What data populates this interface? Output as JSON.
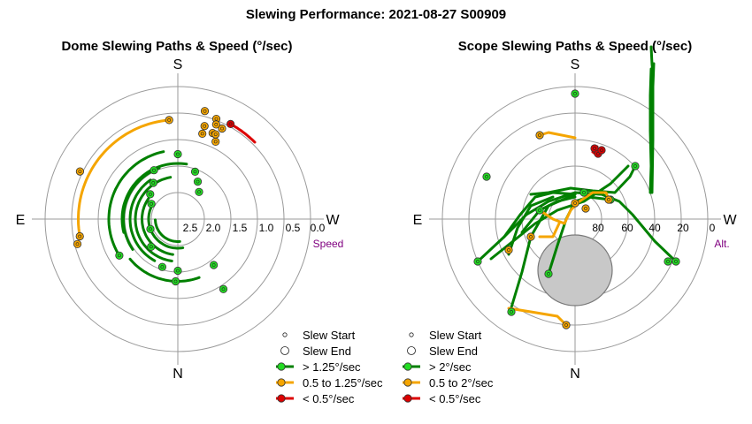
{
  "title": "Slewing Performance: 2021-08-27 S00909",
  "colors": {
    "fast": "#008000",
    "fast_marker": "#22dd22",
    "medium": "#f5a500",
    "medium_marker": "#f5a500",
    "slow": "#dd0000",
    "slow_marker": "#dd0000",
    "grid": "#9a9a9a",
    "axis_label": "#800080",
    "obscured": "#c8c8c8"
  },
  "chart_data": [
    {
      "type": "scatter",
      "subtype": "polar",
      "title": "Dome Slewing Paths & Speed (°/sec)",
      "directions": {
        "top": "S",
        "bottom": "N",
        "left": "E",
        "right": "W"
      },
      "radial_label": "Speed",
      "radial_ticks": [
        "2.5",
        "2.0",
        "1.5",
        "1.0",
        "0.5",
        "0.0"
      ],
      "rlim": [
        0.0,
        2.5
      ],
      "legend": {
        "placement": "bottom-right",
        "entries": [
          "Slew Start",
          "Slew End",
          "> 1.25°/sec",
          "0.5 to 1.25°/sec",
          "< 0.5°/sec"
        ]
      },
      "arcs": [
        {
          "r": 0.42,
          "a1": -9,
          "a2": 104,
          "speed": "fast"
        },
        {
          "r": 0.32,
          "a1": 10,
          "a2": 172,
          "speed": "fast"
        },
        {
          "r": 0.41,
          "a1": 20,
          "a2": 124,
          "speed": "fast"
        },
        {
          "r": 0.36,
          "a1": 35,
          "a2": 151,
          "speed": "fast"
        },
        {
          "r": 0.27,
          "a1": 55,
          "a2": 172,
          "speed": "fast"
        },
        {
          "r": 0.22,
          "a1": 65,
          "a2": 190,
          "speed": "fast"
        },
        {
          "r": 0.17,
          "a1": 92,
          "a2": 185,
          "speed": "fast"
        },
        {
          "r": 0.47,
          "a1": 130,
          "a2": 200,
          "speed": "fast"
        },
        {
          "r": 0.52,
          "a1": 12,
          "a2": 122,
          "speed": "fast"
        },
        {
          "r": 0.75,
          "a1": 5,
          "a2": 100,
          "speed": "medium"
        },
        {
          "r": 0.82,
          "a1": -29,
          "a2": -45,
          "speed": "slow"
        }
      ],
      "markers": [
        {
          "r": 0.49,
          "a": 0,
          "speed": "fast"
        },
        {
          "r": 0.41,
          "a": 26,
          "speed": "fast"
        },
        {
          "r": 0.33,
          "a": 34,
          "speed": "fast"
        },
        {
          "r": 0.28,
          "a": 48,
          "speed": "fast"
        },
        {
          "r": 0.23,
          "a": 60,
          "speed": "fast"
        },
        {
          "r": 0.38,
          "a": -20,
          "speed": "fast"
        },
        {
          "r": 0.32,
          "a": -28,
          "speed": "fast"
        },
        {
          "r": 0.26,
          "a": -38,
          "speed": "fast"
        },
        {
          "r": 0.22,
          "a": 110,
          "speed": "fast"
        },
        {
          "r": 0.29,
          "a": 136,
          "speed": "fast"
        },
        {
          "r": 0.38,
          "a": 162,
          "speed": "fast"
        },
        {
          "r": 0.47,
          "a": 178,
          "speed": "fast"
        },
        {
          "r": 0.44,
          "a": -142,
          "speed": "fast"
        },
        {
          "r": 0.63,
          "a": -147,
          "speed": "fast"
        },
        {
          "r": 0.52,
          "a": 122,
          "speed": "fast"
        },
        {
          "r": 0.39,
          "a": 180,
          "speed": "fast"
        },
        {
          "r": 0.75,
          "a": 5,
          "speed": "medium"
        },
        {
          "r": 0.73,
          "a": -16,
          "speed": "medium"
        },
        {
          "r": 0.84,
          "a": -14,
          "speed": "medium"
        },
        {
          "r": 0.81,
          "a": -21,
          "speed": "medium"
        },
        {
          "r": 0.77,
          "a": -22,
          "speed": "medium"
        },
        {
          "r": 0.7,
          "a": -22,
          "speed": "medium"
        },
        {
          "r": 0.67,
          "a": -16,
          "speed": "medium"
        },
        {
          "r": 0.65,
          "a": -26,
          "speed": "medium"
        },
        {
          "r": 0.7,
          "a": -24,
          "speed": "medium"
        },
        {
          "r": 0.76,
          "a": -26,
          "speed": "medium"
        },
        {
          "r": 0.75,
          "a": 100,
          "speed": "medium"
        },
        {
          "r": 0.78,
          "a": 104,
          "speed": "medium"
        },
        {
          "r": 0.82,
          "a": 64,
          "speed": "medium"
        },
        {
          "r": 0.82,
          "a": -29,
          "speed": "slow"
        }
      ]
    },
    {
      "type": "scatter",
      "subtype": "polar",
      "title": "Scope Slewing Paths & Speed (°/sec)",
      "directions": {
        "top": "S",
        "bottom": "N",
        "left": "E",
        "right": "W"
      },
      "radial_label": "Alt.",
      "radial_ticks": [
        "80",
        "60",
        "40",
        "20",
        "0"
      ],
      "rlim": [
        90,
        0
      ],
      "legend": {
        "placement": "bottom-right",
        "entries": [
          "Slew Start",
          "Slew End",
          "> 2°/sec",
          "0.5 to 2°/sec",
          "< 0.5°/sec"
        ]
      },
      "paths": [
        {
          "speed": "fast",
          "points": [
            [
              86,
              30
            ],
            [
              87,
              60
            ],
            [
              87,
              100
            ],
            [
              88,
              140
            ],
            [
              88,
              165
            ],
            [
              87,
              175
            ],
            [
              86,
              195
            ]
          ]
        },
        {
          "speed": "fast",
          "points": [
            [
              85,
              30
            ],
            [
              86,
              60
            ],
            [
              85,
              100
            ],
            [
              85,
              140
            ],
            [
              86,
              170
            ]
          ]
        },
        {
          "speed": "fast",
          "points": [
            [
              87,
              30
            ],
            [
              88,
              90
            ],
            [
              88,
              150
            ],
            [
              89,
              176
            ]
          ]
        },
        {
          "speed": "fast",
          "points": [
            [
              -50,
              28
            ],
            [
              -30,
              30
            ],
            [
              -5,
              35
            ],
            [
              20,
              32
            ],
            [
              45,
              30
            ],
            [
              62,
              48
            ],
            [
              68,
              60
            ]
          ]
        },
        {
          "speed": "fast",
          "points": [
            [
              -95,
              -45
            ],
            [
              -70,
              -25
            ],
            [
              -45,
              -5
            ],
            [
              -20,
              10
            ],
            [
              10,
              20
            ],
            [
              40,
              40
            ],
            [
              60,
              60
            ]
          ]
        },
        {
          "speed": "fast",
          "points": [
            [
              -110,
              -48
            ],
            [
              -80,
              -20
            ],
            [
              -55,
              5
            ],
            [
              -30,
              20
            ],
            [
              0,
              30
            ],
            [
              30,
              28
            ]
          ]
        },
        {
          "speed": "fast",
          "points": [
            [
              -80,
              -20
            ],
            [
              -62,
              5
            ],
            [
              -45,
              25
            ],
            [
              -25,
              30
            ],
            [
              0,
              28
            ]
          ]
        },
        {
          "speed": "fast",
          "points": [
            [
              -30,
              -62
            ],
            [
              -20,
              -30
            ],
            [
              -10,
              0
            ],
            [
              0,
              20
            ],
            [
              15,
              25
            ],
            [
              40,
              22
            ]
          ]
        },
        {
          "speed": "fast",
          "points": [
            [
              -72,
              -100
            ],
            [
              -60,
              -60
            ],
            [
              -50,
              -20
            ],
            [
              -30,
              15
            ],
            [
              0,
              28
            ]
          ]
        },
        {
          "speed": "fast",
          "points": [
            [
              114,
              -48
            ],
            [
              90,
              -25
            ],
            [
              65,
              5
            ],
            [
              50,
              20
            ],
            [
              30,
              28
            ],
            [
              5,
              30
            ]
          ]
        },
        {
          "speed": "fast",
          "points": [
            [
              -75,
              -40
            ],
            [
              -65,
              -10
            ],
            [
              -50,
              15
            ],
            [
              -25,
              25
            ]
          ]
        },
        {
          "speed": "fast",
          "points": [
            [
              -60,
              -15
            ],
            [
              -40,
              10
            ],
            [
              -20,
              20
            ],
            [
              0,
              25
            ]
          ]
        },
        {
          "speed": "medium",
          "points": [
            [
              -75,
              -101
            ],
            [
              -50,
              -105
            ],
            [
              -20,
              -110
            ],
            [
              -10,
              -120
            ]
          ]
        },
        {
          "speed": "medium",
          "points": [
            [
              -40,
              95
            ],
            [
              -30,
              98
            ],
            [
              -15,
              95
            ],
            [
              0,
              92
            ]
          ]
        },
        {
          "speed": "medium",
          "points": [
            [
              -40,
              10
            ],
            [
              -25,
              0
            ],
            [
              -12,
              -5
            ],
            [
              -5,
              10
            ],
            [
              5,
              20
            ],
            [
              20,
              30
            ],
            [
              35,
              30
            ],
            [
              38,
              22
            ]
          ]
        },
        {
          "speed": "medium",
          "points": [
            [
              -40,
              -20
            ],
            [
              -25,
              -20
            ],
            [
              -18,
              -5
            ]
          ]
        },
        {
          "speed": "slow",
          "points": [
            [
              20,
              82
            ],
            [
              25,
              78
            ],
            [
              30,
              75
            ],
            [
              25,
              72
            ],
            [
              20,
              76
            ],
            [
              25,
              82
            ]
          ]
        }
      ],
      "markers": [
        {
          "x": 0,
          "y": 142,
          "speed": "fast"
        },
        {
          "x": 105,
          "y": -48,
          "speed": "fast"
        },
        {
          "x": 114,
          "y": -48,
          "speed": "fast"
        },
        {
          "x": -110,
          "y": -48,
          "speed": "fast"
        },
        {
          "x": -100,
          "y": 48,
          "speed": "fast"
        },
        {
          "x": -72,
          "y": -105,
          "speed": "fast"
        },
        {
          "x": -30,
          "y": -62,
          "speed": "fast"
        },
        {
          "x": -40,
          "y": 10,
          "speed": "fast"
        },
        {
          "x": 10,
          "y": 30,
          "speed": "fast"
        },
        {
          "x": 40,
          "y": 22,
          "speed": "fast"
        },
        {
          "x": 68,
          "y": 60,
          "speed": "fast"
        },
        {
          "x": -40,
          "y": 95,
          "speed": "medium"
        },
        {
          "x": -75,
          "y": -35,
          "speed": "medium"
        },
        {
          "x": -10,
          "y": -120,
          "speed": "medium"
        },
        {
          "x": 0,
          "y": 18,
          "speed": "medium"
        },
        {
          "x": 12,
          "y": 12,
          "speed": "medium"
        },
        {
          "x": 38,
          "y": 22,
          "speed": "medium"
        },
        {
          "x": -50,
          "y": -20,
          "speed": "medium"
        },
        {
          "x": 22,
          "y": 80,
          "speed": "slow"
        },
        {
          "x": 26,
          "y": 74,
          "speed": "slow"
        },
        {
          "x": 30,
          "y": 78,
          "speed": "slow"
        }
      ],
      "obscured_region": {
        "x": 0,
        "y": -58,
        "rx": 42,
        "ry": 40
      }
    }
  ]
}
